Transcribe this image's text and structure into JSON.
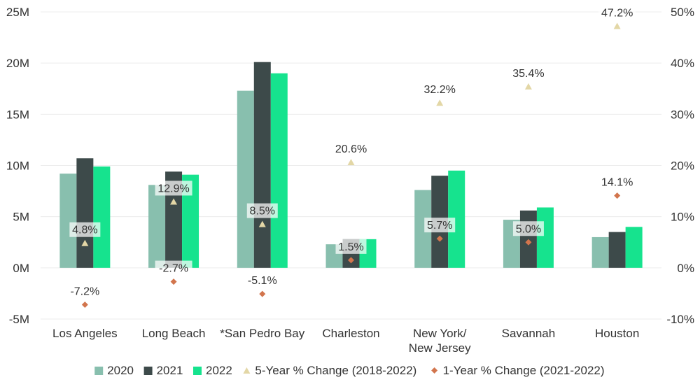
{
  "chart_data": {
    "type": "bar",
    "categories": [
      [
        "Los Angeles"
      ],
      [
        "Long Beach"
      ],
      [
        "*San Pedro Bay"
      ],
      [
        "Charleston"
      ],
      [
        "New York/",
        "New Jersey"
      ],
      [
        "Savannah"
      ],
      [
        "Houston"
      ]
    ],
    "series": [
      {
        "name": "2020",
        "values": [
          9.2,
          8.1,
          17.3,
          2.3,
          7.6,
          4.7,
          3.0
        ],
        "color": "#88BFAE"
      },
      {
        "name": "2021",
        "values": [
          10.7,
          9.4,
          20.1,
          2.8,
          9.0,
          5.6,
          3.5
        ],
        "color": "#3D4A4A"
      },
      {
        "name": "2022",
        "values": [
          9.9,
          9.1,
          19.0,
          2.8,
          9.5,
          5.9,
          4.0
        ],
        "color": "#16E38E"
      }
    ],
    "overlays": [
      {
        "name": "5-Year % Change (2018-2022)",
        "marker": "triangle",
        "color": "#E3D7A6",
        "values": [
          4.8,
          12.9,
          8.5,
          20.6,
          32.2,
          35.4,
          47.2
        ],
        "labels": [
          "4.8%",
          "12.9%",
          "8.5%",
          "20.6%",
          "32.2%",
          "35.4%",
          "47.2%"
        ]
      },
      {
        "name": "1-Year % Change (2021-2022)",
        "marker": "diamond",
        "color": "#D2754D",
        "values": [
          -7.2,
          -2.7,
          -5.1,
          1.5,
          5.7,
          5.0,
          14.1
        ],
        "labels": [
          "-7.2%",
          "-2.7%",
          "-5.1%",
          "1.5%",
          "5.7%",
          "5.0%",
          "14.1%"
        ]
      }
    ],
    "y_left": {
      "min": -5,
      "max": 25,
      "ticks": [
        -5,
        0,
        5,
        10,
        15,
        20,
        25
      ],
      "tick_labels": [
        "-5M",
        "0M",
        "5M",
        "10M",
        "15M",
        "20M",
        "25M"
      ]
    },
    "y_right": {
      "min": -10,
      "max": 50,
      "ticks": [
        -10,
        0,
        10,
        20,
        30,
        40,
        50
      ],
      "tick_labels": [
        "-10%",
        "0%",
        "10%",
        "20%",
        "30%",
        "40%",
        "50%"
      ]
    },
    "grid": true,
    "legend_position": "bottom",
    "title": "",
    "xlabel": "",
    "ylabel": ""
  }
}
